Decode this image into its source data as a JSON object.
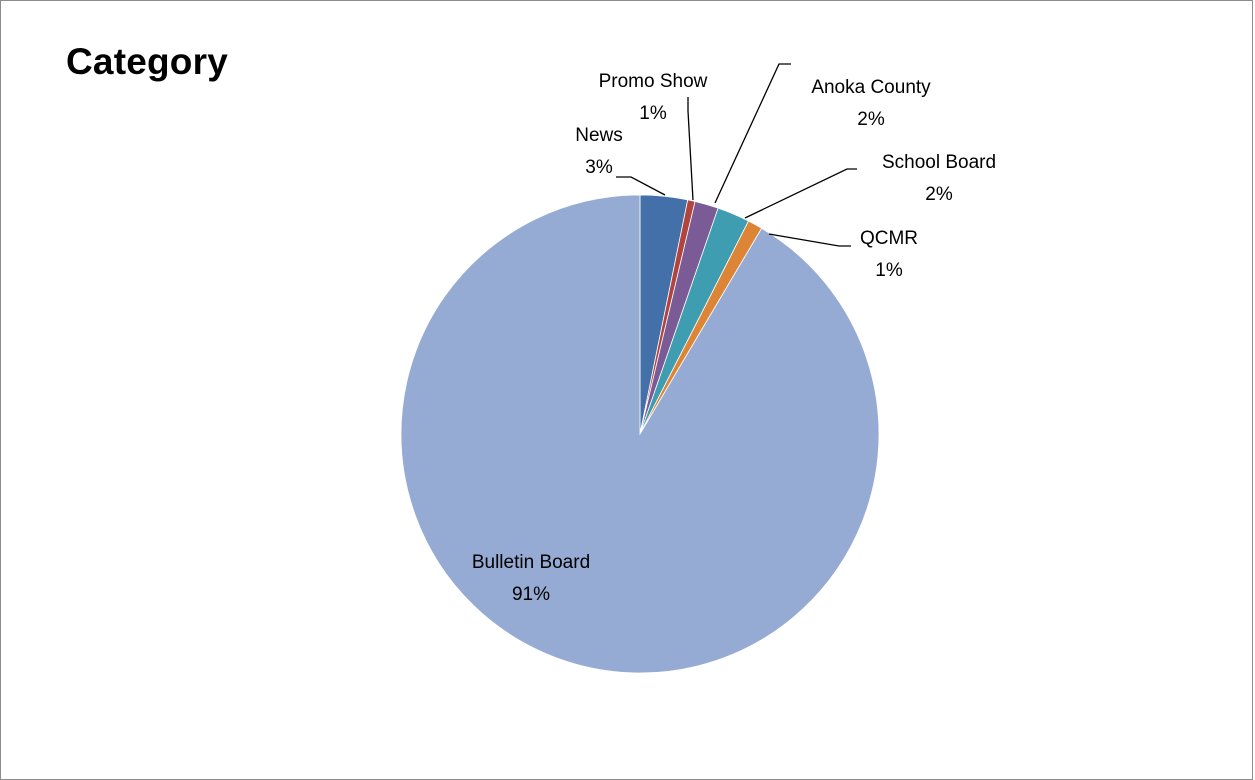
{
  "chart_data": {
    "type": "pie",
    "title": "Category",
    "legend": "none",
    "slices": [
      {
        "label": "News",
        "pct_label": "3%",
        "value": 3.2,
        "color": "#4370a8"
      },
      {
        "label": "Promo Show",
        "pct_label": "1%",
        "value": 0.5,
        "color": "#b0443f"
      },
      {
        "label": "Anoka County",
        "pct_label": "2%",
        "value": 1.6,
        "color": "#7a5b95"
      },
      {
        "label": "School Board",
        "pct_label": "2%",
        "value": 2.2,
        "color": "#3f9db1"
      },
      {
        "label": "QCMR",
        "pct_label": "1%",
        "value": 1.0,
        "color": "#dc8537"
      },
      {
        "label": "Bulletin Board",
        "pct_label": "91%",
        "value": 91.5,
        "color": "#96abd3"
      }
    ]
  }
}
